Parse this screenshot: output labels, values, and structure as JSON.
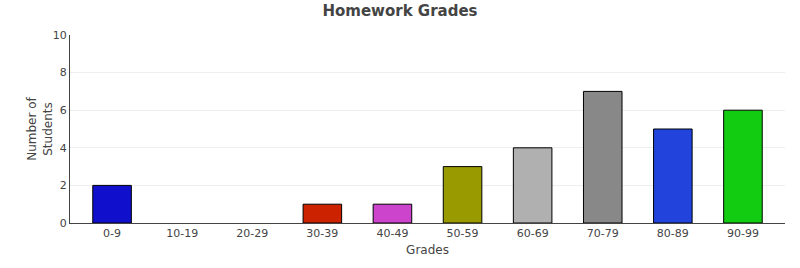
{
  "chart_data": {
    "type": "bar",
    "title": "Homework Grades",
    "xlabel": "Grades",
    "ylabel": "Number of\nStudents",
    "categories": [
      "0-9",
      "10-19",
      "20-29",
      "30-39",
      "40-49",
      "50-59",
      "60-69",
      "70-79",
      "80-89",
      "90-99"
    ],
    "values": [
      2,
      0,
      0,
      1,
      1,
      3,
      4,
      7,
      5,
      6
    ],
    "colors": [
      "#1010cc",
      "#ffffff",
      "#ffffff",
      "#cc2200",
      "#cc44cc",
      "#999900",
      "#b0b0b0",
      "#888888",
      "#2244dd",
      "#11cc11"
    ],
    "ylim": [
      0,
      10
    ],
    "yticks": [
      0,
      2,
      4,
      6,
      8,
      10
    ],
    "grid": true
  }
}
